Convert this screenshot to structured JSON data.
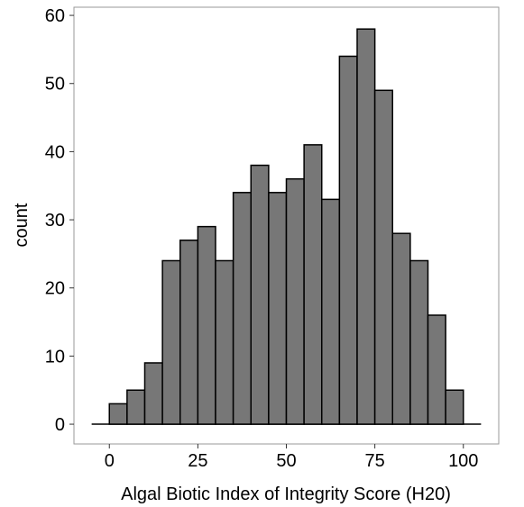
{
  "chart_data": {
    "type": "histogram",
    "x_label": "Algal Biotic Index of Integrity Score (H20)",
    "y_label": "count",
    "bins": [
      0,
      5,
      10,
      15,
      20,
      25,
      30,
      35,
      40,
      45,
      50,
      55,
      60,
      65,
      70,
      75,
      80,
      85,
      90,
      95,
      100
    ],
    "values": [
      3,
      5,
      9,
      24,
      27,
      29,
      24,
      34,
      38,
      34,
      36,
      41,
      33,
      54,
      58,
      49,
      28,
      24,
      16,
      5
    ],
    "color": "#777777",
    "xlim": [
      -10,
      110
    ],
    "xticks": [
      0,
      25,
      50,
      75,
      100
    ],
    "ylim": [
      -2.9,
      61.2
    ],
    "yticks": [
      0,
      10,
      20,
      30,
      40,
      50,
      60
    ]
  }
}
